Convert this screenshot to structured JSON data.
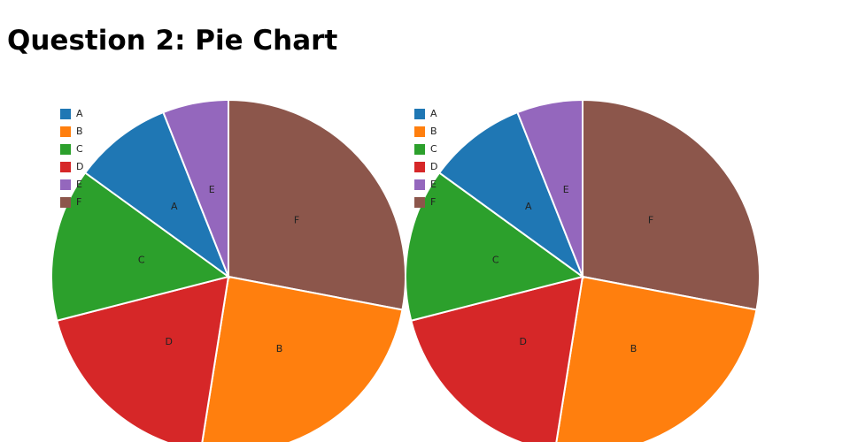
{
  "title": "Question 2: Pie Chart",
  "chart_data": [
    {
      "type": "pie",
      "categories": [
        "F",
        "B",
        "D",
        "C",
        "A",
        "E"
      ],
      "values": [
        28,
        24.5,
        18.5,
        14,
        9,
        6
      ],
      "colors": [
        "#8c564b",
        "#ff7f0e",
        "#d62728",
        "#2ca02c",
        "#1f77b4",
        "#9467bd"
      ],
      "legend": "top-left"
    },
    {
      "type": "pie",
      "categories": [
        "F",
        "B",
        "D",
        "C",
        "A",
        "E"
      ],
      "values": [
        28,
        24.5,
        18.5,
        14,
        9,
        6
      ],
      "colors": [
        "#8c564b",
        "#ff7f0e",
        "#d62728",
        "#2ca02c",
        "#1f77b4",
        "#9467bd"
      ],
      "legend": "top-left"
    }
  ]
}
